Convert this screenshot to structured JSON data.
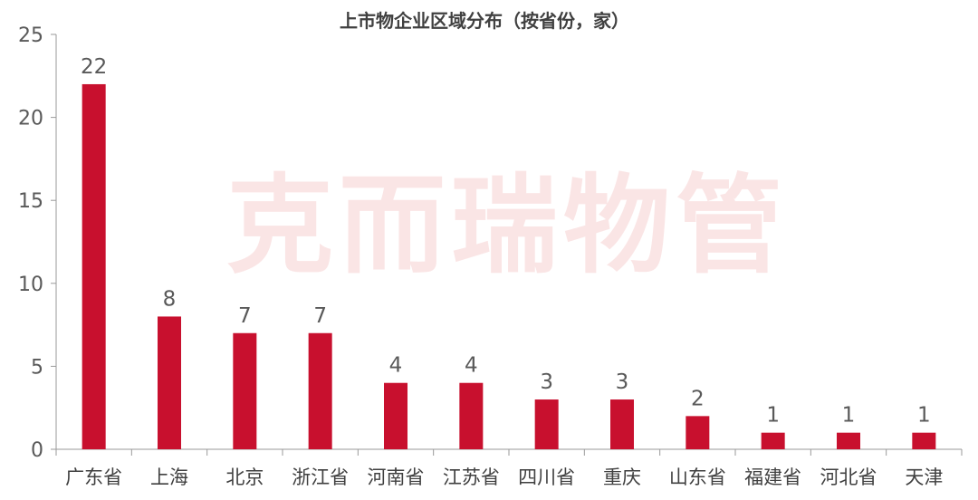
{
  "watermark": "克而瑞物管",
  "chart_data": {
    "type": "bar",
    "title": "上市物企业区域分布（按省份，家）",
    "xlabel": "",
    "ylabel": "",
    "categories": [
      "广东省",
      "上海",
      "北京",
      "浙江省",
      "河南省",
      "江苏省",
      "四川省",
      "重庆",
      "山东省",
      "福建省",
      "河北省",
      "天津"
    ],
    "values": [
      22,
      8,
      7,
      7,
      4,
      4,
      3,
      3,
      2,
      1,
      1,
      1
    ],
    "ylim": [
      0,
      25
    ],
    "yticks": [
      0,
      5,
      10,
      15,
      20,
      25
    ],
    "grid": false,
    "legend": "none",
    "bar_color": "#c8102e"
  }
}
